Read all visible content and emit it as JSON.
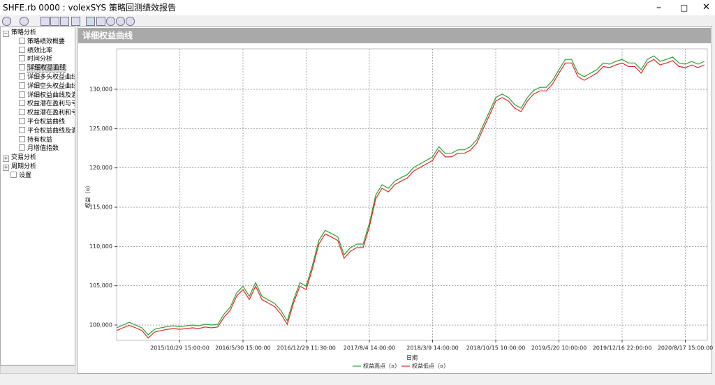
{
  "window": {
    "title": "SHFE.rb 0000 : volexSYS 策略回测绩效报告"
  },
  "sidebar": {
    "tree": [
      {
        "label": "策略分析",
        "children": [
          "策略绩效概要",
          "绩效比率",
          "时间分析",
          "详细权益曲线",
          "详细多头权益曲线",
          "详细空头权益曲线",
          "详细权益曲线及潜在",
          "权益潜在盈利与亏损",
          "权益潜在盈利和亏损",
          "平仓权益曲线",
          "平仓权益曲线及潜在",
          "持有权益",
          "月增值指数"
        ]
      },
      {
        "label": "交易分析",
        "children": []
      },
      {
        "label": "周期分析",
        "children": []
      },
      {
        "label": "设置",
        "children": []
      }
    ]
  },
  "panel": {
    "title": "详细权益曲线"
  },
  "chart_data": {
    "type": "line",
    "ylabel": "权益（¤）",
    "xlabel": "日期",
    "categories": [
      null,
      null,
      null,
      null,
      null,
      null,
      null,
      null,
      null,
      null,
      "2015/10/29 15:00:00",
      null,
      null,
      null,
      null,
      null,
      null,
      null,
      null,
      null,
      "2016/5/30 15:00:00",
      null,
      null,
      null,
      null,
      null,
      null,
      null,
      null,
      null,
      "2016/12/29 11:30:00",
      null,
      null,
      null,
      null,
      null,
      null,
      null,
      null,
      null,
      "2017/8/4 14:00:00",
      null,
      null,
      null,
      null,
      null,
      null,
      null,
      null,
      null,
      "2018/3/9 14:00:00",
      null,
      null,
      null,
      null,
      null,
      null,
      null,
      null,
      null,
      "2018/10/15 10:00:00",
      null,
      null,
      null,
      null,
      null,
      null,
      null,
      null,
      null,
      "2019/5/20 10:00:00",
      null,
      null,
      null,
      null,
      null,
      null,
      null,
      null,
      null,
      "2019/12/16 22:00:00",
      null,
      null,
      null,
      null,
      null,
      null,
      null,
      null,
      null,
      "2020/8/17 15:00:00",
      null,
      null,
      null
    ],
    "series": [
      {
        "name": "权益高点（¤）",
        "color": "#2ca02c",
        "values": [
          99650,
          100000,
          100350,
          100000,
          99650,
          98750,
          99450,
          99650,
          99800,
          99900,
          99800,
          99900,
          100000,
          99900,
          100100,
          100000,
          100100,
          101400,
          102300,
          104100,
          104950,
          103650,
          105400,
          103650,
          103200,
          102750,
          101850,
          100550,
          103200,
          105400,
          104950,
          107650,
          110750,
          112050,
          111650,
          111200,
          108950,
          109850,
          110300,
          110300,
          112950,
          116500,
          117850,
          117400,
          118300,
          118750,
          119150,
          120050,
          120500,
          120950,
          121400,
          122700,
          121850,
          121850,
          122300,
          122300,
          122700,
          123600,
          125400,
          127150,
          128950,
          129400,
          128950,
          128050,
          127600,
          128950,
          129850,
          130250,
          130250,
          131150,
          132500,
          133800,
          133800,
          132050,
          131600,
          132050,
          132500,
          133350,
          133200,
          133550,
          133800,
          133350,
          133350,
          132500,
          133800,
          134250,
          133550,
          133800,
          134100,
          133350,
          133200,
          133550,
          133200,
          133550
        ]
      },
      {
        "name": "权益低点（¤）",
        "color": "#e32626",
        "values": [
          99300,
          99650,
          99950,
          99650,
          99300,
          98350,
          99100,
          99300,
          99450,
          99550,
          99450,
          99550,
          99650,
          99550,
          99750,
          99650,
          99750,
          101000,
          101900,
          103700,
          104500,
          103250,
          104950,
          103250,
          102800,
          102350,
          101400,
          100100,
          102800,
          104950,
          104500,
          107200,
          110300,
          111600,
          111200,
          110750,
          108500,
          109400,
          109850,
          109850,
          112500,
          116050,
          117400,
          116950,
          117850,
          118300,
          118700,
          119600,
          120050,
          120500,
          120950,
          122250,
          121400,
          121400,
          121850,
          121850,
          122250,
          123150,
          124950,
          126700,
          128500,
          128950,
          128500,
          127600,
          127150,
          128500,
          129400,
          129800,
          129800,
          130700,
          132050,
          133350,
          133350,
          131600,
          131150,
          131600,
          132050,
          132900,
          132750,
          133100,
          133350,
          132900,
          132900,
          132050,
          133350,
          133800,
          133100,
          133350,
          133650,
          132900,
          132750,
          133100,
          132750,
          133100
        ]
      }
    ],
    "ylim": [
      98050,
      135150
    ],
    "yticks": [
      {
        "value": 100000,
        "label": "100,000"
      },
      {
        "value": 105000,
        "label": "105,000"
      },
      {
        "value": 110000,
        "label": "110,000"
      },
      {
        "value": 115000,
        "label": "115,000"
      },
      {
        "value": 120000,
        "label": "120,000"
      },
      {
        "value": 125000,
        "label": "125,000"
      },
      {
        "value": 130000,
        "label": "130,000"
      }
    ],
    "grid": true
  }
}
